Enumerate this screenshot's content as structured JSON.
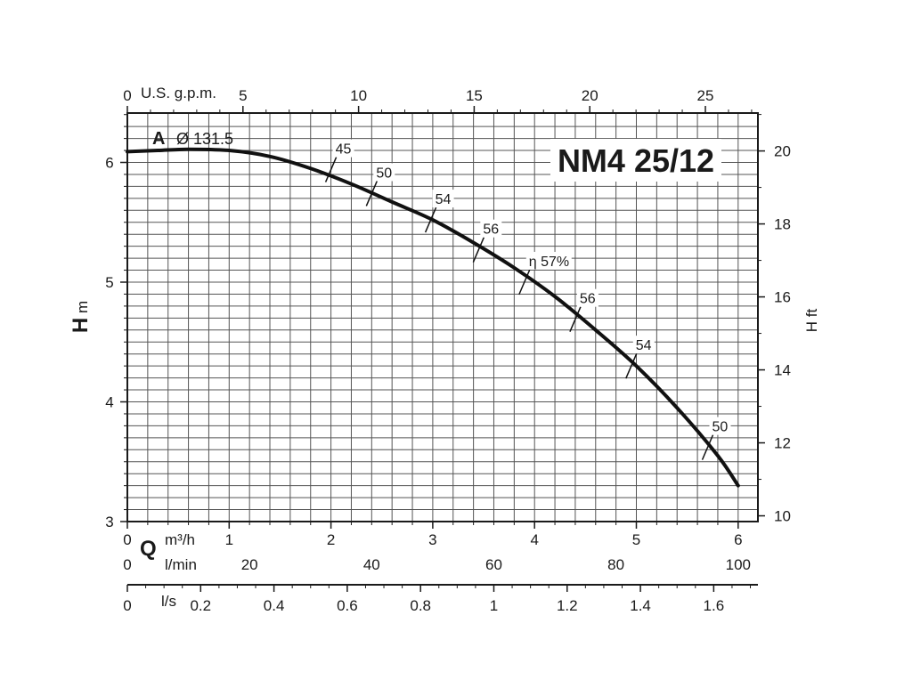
{
  "chart_data": {
    "type": "line",
    "title": "NM4 25/12",
    "curve_id": "A",
    "curve_diameter_label": "Ø 131.5",
    "xlabel": "Q",
    "x_unit": "m³/h",
    "ylabel": "H",
    "y_unit": "m",
    "y2label": "H ft",
    "xlim": [
      0,
      6.2
    ],
    "ylim": [
      3,
      6.4
    ],
    "x_ticks": [
      "0",
      "1",
      "2",
      "3",
      "4",
      "5",
      "6"
    ],
    "x_tick_values": [
      0,
      1,
      2,
      3,
      4,
      5,
      6
    ],
    "y_ticks": [
      "3",
      "4",
      "5",
      "6"
    ],
    "y_tick_values": [
      3,
      4,
      5,
      6
    ],
    "y2_ticks": [
      "10",
      "12",
      "14",
      "16",
      "18",
      "20"
    ],
    "y2_tick_values": [
      10,
      12,
      14,
      16,
      18,
      20
    ],
    "top_axis": {
      "unit": "U.S. g.p.m.",
      "ticks": [
        "0",
        "5",
        "10",
        "15",
        "20",
        "25"
      ],
      "values": [
        0,
        5,
        10,
        15,
        20,
        25
      ]
    },
    "lmin_axis": {
      "unit": "l/min",
      "ticks": [
        "0",
        "20",
        "40",
        "60",
        "80",
        "100"
      ],
      "values": [
        0,
        20,
        40,
        60,
        80,
        100
      ]
    },
    "ls_axis": {
      "unit": "l/s",
      "ticks": [
        "0",
        "0.2",
        "0.4",
        "0.6",
        "0.8",
        "1",
        "1.2",
        "1.4",
        "1.6"
      ],
      "values": [
        0,
        0.2,
        0.4,
        0.6,
        0.8,
        1.0,
        1.2,
        1.4,
        1.6
      ]
    },
    "grid": true,
    "series": [
      {
        "x": [
          0,
          0.3,
          0.6,
          1.0,
          1.4,
          1.8,
          2.2,
          2.6,
          3.0,
          3.4,
          3.8,
          4.2,
          4.6,
          5.0,
          5.4,
          5.8,
          6.0
        ],
        "y": [
          6.09,
          6.1,
          6.11,
          6.1,
          6.05,
          5.95,
          5.82,
          5.67,
          5.52,
          5.33,
          5.12,
          4.88,
          4.6,
          4.3,
          3.95,
          3.55,
          3.3
        ]
      }
    ],
    "efficiency_marks": [
      {
        "label": "45",
        "x": 2.0,
        "y": 5.94
      },
      {
        "label": "50",
        "x": 2.4,
        "y": 5.74
      },
      {
        "label": "54",
        "x": 2.98,
        "y": 5.52
      },
      {
        "label": "56",
        "x": 3.45,
        "y": 5.27
      },
      {
        "label": "η 57%",
        "x": 3.9,
        "y": 5.0
      },
      {
        "label": "56",
        "x": 4.4,
        "y": 4.69
      },
      {
        "label": "54",
        "x": 4.95,
        "y": 4.3
      },
      {
        "label": "50",
        "x": 5.7,
        "y": 3.62
      }
    ]
  }
}
